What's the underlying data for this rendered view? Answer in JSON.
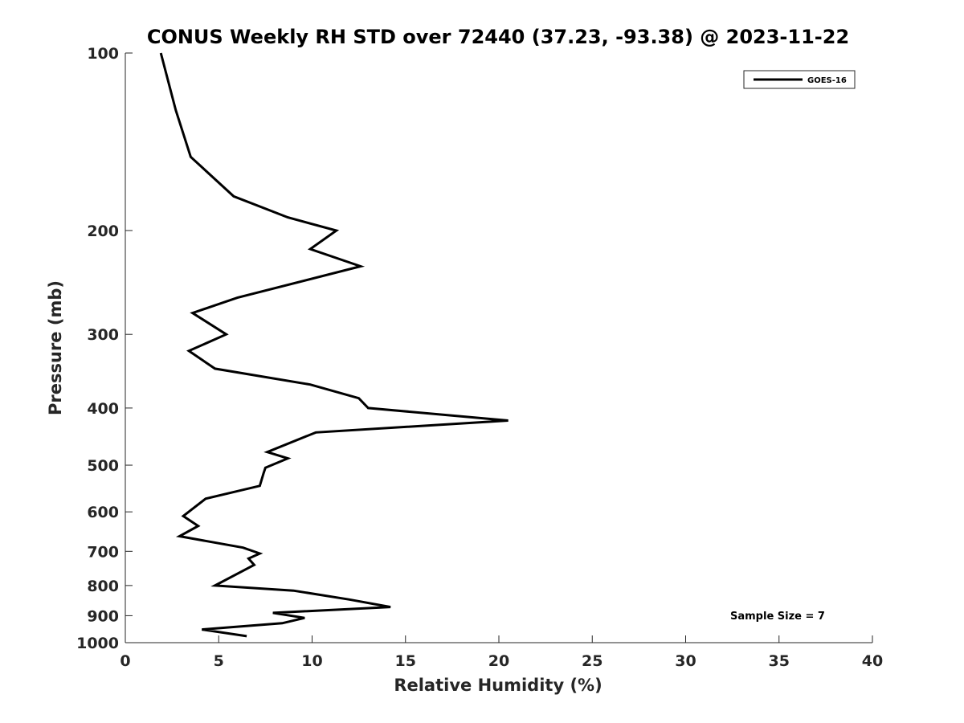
{
  "chart_data": {
    "type": "line",
    "title": "CONUS Weekly RH STD over 72440 (37.23, -93.38) @ 2023-11-22",
    "xlabel": "Relative Humidity (%)",
    "ylabel": "Pressure (mb)",
    "xlim": [
      0,
      40
    ],
    "ylim": [
      100,
      1000
    ],
    "y_scale": "log",
    "y_reversed": true,
    "x_ticks": [
      0,
      5,
      10,
      15,
      20,
      25,
      30,
      35,
      40
    ],
    "y_ticks": [
      100,
      200,
      300,
      400,
      500,
      600,
      700,
      800,
      900,
      1000
    ],
    "grid": false,
    "legend_position": "top-right",
    "annotation": "Sample Size = 7",
    "series": [
      {
        "name": "GOES-16",
        "color": "#000000",
        "points": [
          [
            1.9,
            100
          ],
          [
            2.7,
            125
          ],
          [
            3.5,
            150
          ],
          [
            5.8,
            175
          ],
          [
            8.7,
            190
          ],
          [
            11.3,
            200
          ],
          [
            9.9,
            215
          ],
          [
            12.6,
            230
          ],
          [
            6.0,
            260
          ],
          [
            3.6,
            276
          ],
          [
            5.4,
            300
          ],
          [
            3.4,
            320
          ],
          [
            4.8,
            343
          ],
          [
            9.9,
            365
          ],
          [
            12.5,
            385
          ],
          [
            13.0,
            400
          ],
          [
            20.5,
            420
          ],
          [
            10.2,
            440
          ],
          [
            7.6,
            475
          ],
          [
            8.7,
            487
          ],
          [
            7.5,
            505
          ],
          [
            7.4,
            516
          ],
          [
            7.2,
            542
          ],
          [
            4.3,
            570
          ],
          [
            3.1,
            610
          ],
          [
            3.9,
            634
          ],
          [
            2.9,
            660
          ],
          [
            6.3,
            690
          ],
          [
            7.2,
            706
          ],
          [
            6.6,
            720
          ],
          [
            6.9,
            738
          ],
          [
            4.8,
            800
          ],
          [
            9.0,
            816
          ],
          [
            12.0,
            845
          ],
          [
            14.2,
            870
          ],
          [
            7.9,
            890
          ],
          [
            9.6,
            908
          ],
          [
            8.4,
            927
          ],
          [
            4.1,
            950
          ],
          [
            6.5,
            975
          ]
        ]
      }
    ]
  }
}
